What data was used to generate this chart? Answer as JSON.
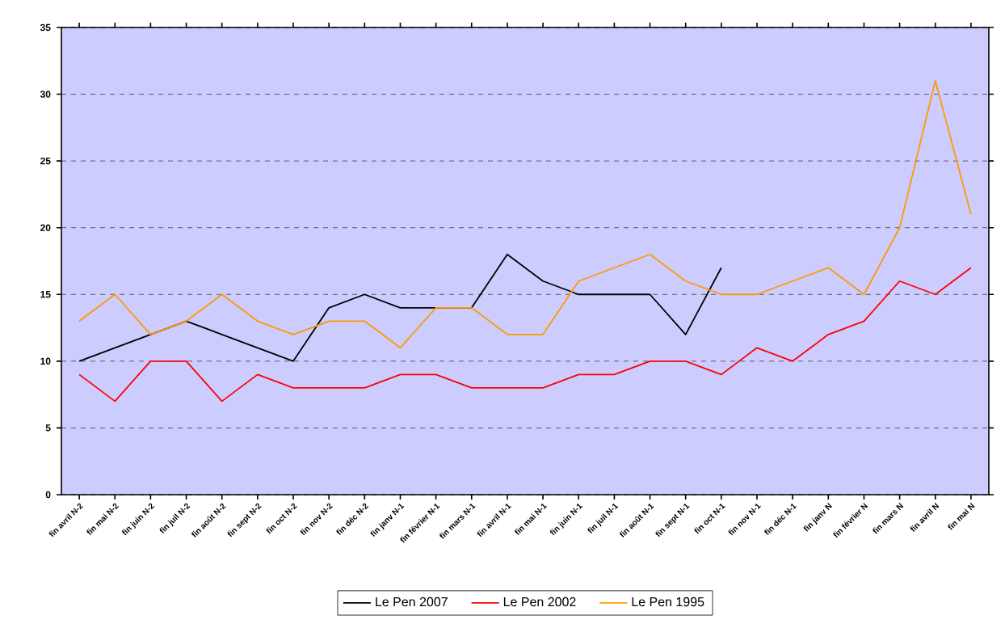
{
  "chart_data": {
    "type": "line",
    "categories": [
      "fin avril N-2",
      "fin mai N-2",
      "fin juin N-2",
      "fin juil N-2",
      "fin août N-2",
      "fin sept N-2",
      "fin oct N-2",
      "fin nov N-2",
      "fin déc N-2",
      "fin janv N-1",
      "fin février N-1",
      "fin mars N-1",
      "fin avril N-1",
      "fin mai N-1",
      "fin juin N-1",
      "fin juil N-1",
      "fin août N-1",
      "fin sept N-1",
      "fin oct N-1",
      "fin nov N-1",
      "fin déc N-1",
      "fin janv N",
      "fin février N",
      "fin mars N",
      "fin avril N",
      "fin mai N"
    ],
    "series": [
      {
        "name": "Le Pen 2007",
        "color": "#000000",
        "values": [
          10,
          11,
          12,
          13,
          12,
          11,
          10,
          14,
          15,
          14,
          14,
          14,
          18,
          16,
          15,
          15,
          15,
          12,
          17,
          null,
          null,
          null,
          null,
          null,
          null,
          null
        ]
      },
      {
        "name": "Le Pen 2002",
        "color": "#ff0000",
        "values": [
          9,
          7,
          10,
          10,
          7,
          9,
          8,
          8,
          8,
          9,
          9,
          8,
          8,
          8,
          9,
          9,
          10,
          10,
          9,
          11,
          10,
          12,
          13,
          16,
          15,
          17
        ]
      },
      {
        "name": "Le Pen 1995",
        "color": "#ff9900",
        "values": [
          13,
          15,
          12,
          13,
          15,
          13,
          12,
          13,
          13,
          11,
          14,
          14,
          12,
          12,
          16,
          17,
          18,
          16,
          15,
          15,
          16,
          17,
          15,
          20,
          31,
          21
        ]
      }
    ],
    "ylim": [
      0,
      35
    ],
    "yticks": [
      0,
      5,
      10,
      15,
      20,
      25,
      30,
      35
    ],
    "grid": "y",
    "legend": "bottom",
    "marker": "none",
    "line_style": "solid"
  }
}
